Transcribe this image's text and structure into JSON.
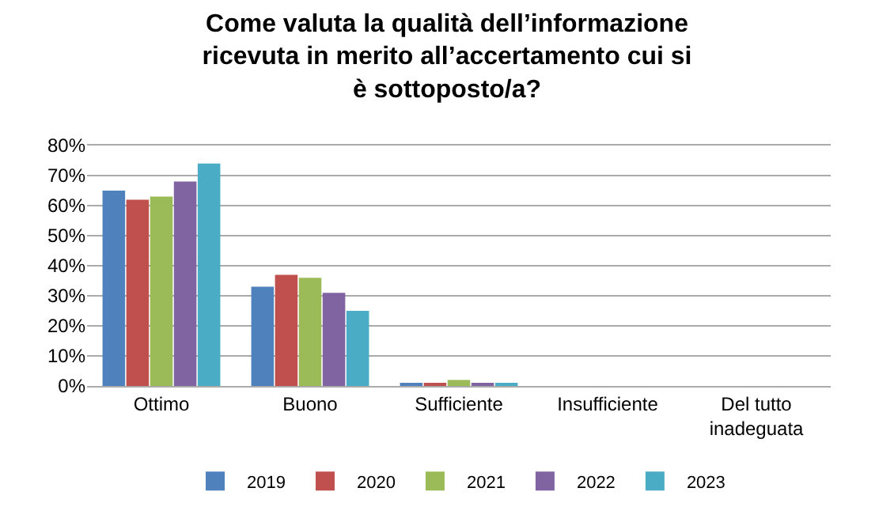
{
  "chart_data": {
    "type": "bar",
    "title": "Come valuta la qualità dell’informazione ricevuta in merito all’accertamento cui si è sottoposto/a?",
    "categories": [
      "Ottimo",
      "Buono",
      "Sufficiente",
      "Insufficiente",
      "Del tutto inadeguata"
    ],
    "series": [
      {
        "name": "2019",
        "color": "#4f81bd",
        "values": [
          65,
          33,
          1,
          0,
          0
        ]
      },
      {
        "name": "2020",
        "color": "#c0504d",
        "values": [
          62,
          37,
          1,
          0,
          0
        ]
      },
      {
        "name": "2021",
        "color": "#9bbb59",
        "values": [
          63,
          36,
          2,
          0,
          0
        ]
      },
      {
        "name": "2022",
        "color": "#8064a2",
        "values": [
          68,
          31,
          1,
          0,
          0
        ]
      },
      {
        "name": "2023",
        "color": "#4bacc6",
        "values": [
          74,
          25,
          1,
          0,
          0
        ]
      }
    ],
    "ylim": [
      0,
      80
    ],
    "yticks": [
      {
        "value": 0,
        "label": "0%"
      },
      {
        "value": 10,
        "label": "10%"
      },
      {
        "value": 20,
        "label": "20%"
      },
      {
        "value": 30,
        "label": "30%"
      },
      {
        "value": 40,
        "label": "40%"
      },
      {
        "value": 50,
        "label": "50%"
      },
      {
        "value": 60,
        "label": "60%"
      },
      {
        "value": 70,
        "label": "70%"
      },
      {
        "value": 80,
        "label": "80%"
      }
    ],
    "grid": "y",
    "legend": "bottom"
  }
}
